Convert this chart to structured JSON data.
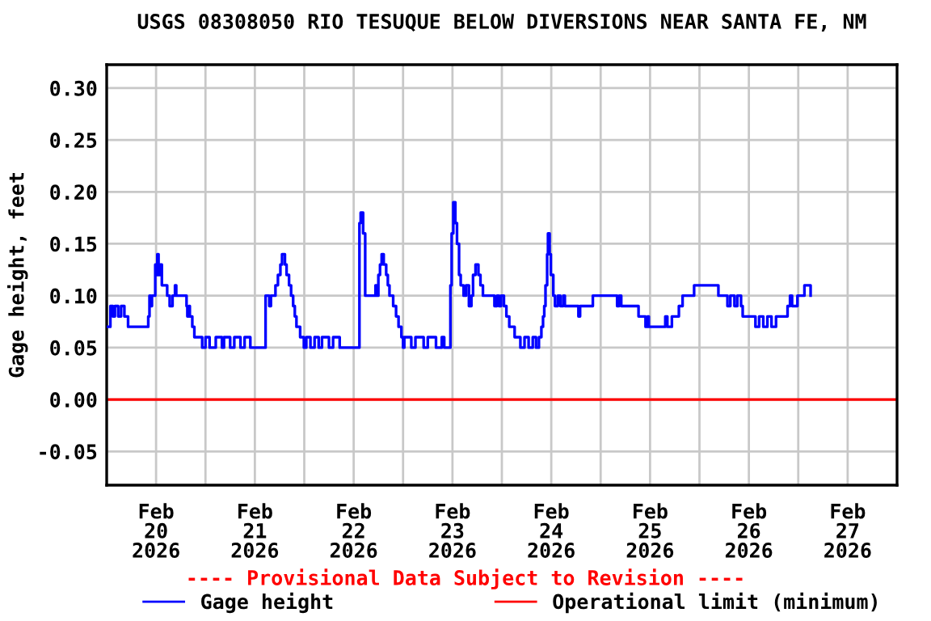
{
  "chart_data": {
    "type": "step",
    "title": "USGS 08308050 RIO TESUQUE BELOW DIVERSIONS NEAR SANTA FE, NM",
    "ylabel": "Gage height, feet",
    "annotations": [
      "---- Provisional Data Subject to Revision ----"
    ],
    "xlim": [
      "2026-02-20T00:00",
      "2026-02-28T00:00"
    ],
    "xticks": [
      {
        "value": "2026-02-20T00:00",
        "label": null
      },
      {
        "value": "2026-02-20T12:00",
        "label": "Feb\n20\n2026"
      },
      {
        "value": "2026-02-21T00:00",
        "label": null
      },
      {
        "value": "2026-02-21T12:00",
        "label": "Feb\n21\n2026"
      },
      {
        "value": "2026-02-22T00:00",
        "label": null
      },
      {
        "value": "2026-02-22T12:00",
        "label": "Feb\n22\n2026"
      },
      {
        "value": "2026-02-23T00:00",
        "label": null
      },
      {
        "value": "2026-02-23T12:00",
        "label": "Feb\n23\n2026"
      },
      {
        "value": "2026-02-24T00:00",
        "label": null
      },
      {
        "value": "2026-02-24T12:00",
        "label": "Feb\n24\n2026"
      },
      {
        "value": "2026-02-25T00:00",
        "label": null
      },
      {
        "value": "2026-02-25T12:00",
        "label": "Feb\n25\n2026"
      },
      {
        "value": "2026-02-26T00:00",
        "label": null
      },
      {
        "value": "2026-02-26T12:00",
        "label": "Feb\n26\n2026"
      },
      {
        "value": "2026-02-27T00:00",
        "label": null
      },
      {
        "value": "2026-02-27T12:00",
        "label": "Feb\n27\n2026"
      },
      {
        "value": "2026-02-28T00:00",
        "label": null
      }
    ],
    "ylim": [
      -0.0825,
      0.3225
    ],
    "yticks": [
      {
        "value": -0.05,
        "label": "-0.05"
      },
      {
        "value": 0,
        "label": "0.00"
      },
      {
        "value": 0.05,
        "label": "0.05"
      },
      {
        "value": 0.1,
        "label": "0.10"
      },
      {
        "value": 0.15,
        "label": "0.15"
      },
      {
        "value": 0.2,
        "label": "0.20"
      },
      {
        "value": 0.25,
        "label": "0.25"
      },
      {
        "value": 0.3,
        "label": "0.30"
      }
    ],
    "grid": true,
    "legend": "bottom",
    "marker": "none",
    "line_style": "solid",
    "series": [
      {
        "name": "Gage height",
        "color": "#0000ff",
        "x": [
          "2026-02-20T00:00",
          "2026-02-20T00:54",
          "2026-02-20T01:30",
          "2026-02-20T02:00",
          "2026-02-20T02:48",
          "2026-02-20T03:30",
          "2026-02-20T04:18",
          "2026-02-20T05:12",
          "2026-02-20T10:06",
          "2026-02-20T10:24",
          "2026-02-20T10:42",
          "2026-02-20T11:00",
          "2026-02-20T11:48",
          "2026-02-20T12:00",
          "2026-02-20T12:18",
          "2026-02-20T12:36",
          "2026-02-20T13:00",
          "2026-02-20T13:24",
          "2026-02-20T14:42",
          "2026-02-20T15:18",
          "2026-02-20T16:00",
          "2026-02-20T16:36",
          "2026-02-20T16:54",
          "2026-02-20T19:24",
          "2026-02-20T19:36",
          "2026-02-20T20:00",
          "2026-02-20T20:12",
          "2026-02-20T20:48",
          "2026-02-20T21:18",
          "2026-02-20T23:12",
          "2026-02-21T00:00",
          "2026-02-21T01:00",
          "2026-02-21T02:30",
          "2026-02-21T04:00",
          "2026-02-21T04:30",
          "2026-02-21T06:00",
          "2026-02-21T07:00",
          "2026-02-21T08:30",
          "2026-02-21T09:30",
          "2026-02-21T10:54",
          "2026-02-21T14:36",
          "2026-02-21T15:30",
          "2026-02-21T15:54",
          "2026-02-21T17:00",
          "2026-02-21T17:36",
          "2026-02-21T18:12",
          "2026-02-21T18:36",
          "2026-02-21T19:18",
          "2026-02-21T19:42",
          "2026-02-21T20:18",
          "2026-02-21T20:48",
          "2026-02-21T21:18",
          "2026-02-21T21:42",
          "2026-02-21T22:06",
          "2026-02-21T23:00",
          "2026-02-21T23:54",
          "2026-02-22T00:30",
          "2026-02-22T01:30",
          "2026-02-22T02:30",
          "2026-02-22T03:30",
          "2026-02-22T04:18",
          "2026-02-22T06:00",
          "2026-02-22T07:00",
          "2026-02-22T08:36",
          "2026-02-22T13:24",
          "2026-02-22T13:42",
          "2026-02-22T14:18",
          "2026-02-22T14:48",
          "2026-02-22T17:18",
          "2026-02-22T17:36",
          "2026-02-22T18:00",
          "2026-02-22T18:24",
          "2026-02-22T18:48",
          "2026-02-22T19:18",
          "2026-02-22T19:54",
          "2026-02-22T20:18",
          "2026-02-22T20:42",
          "2026-02-22T21:36",
          "2026-02-22T22:18",
          "2026-02-22T22:54",
          "2026-02-22T23:36",
          "2026-02-23T00:00",
          "2026-02-23T00:18",
          "2026-02-23T02:00",
          "2026-02-23T03:00",
          "2026-02-23T05:00",
          "2026-02-23T06:00",
          "2026-02-23T08:00",
          "2026-02-23T09:24",
          "2026-02-23T10:00",
          "2026-02-23T11:30",
          "2026-02-23T11:48",
          "2026-02-23T12:12",
          "2026-02-23T12:42",
          "2026-02-23T13:06",
          "2026-02-23T13:36",
          "2026-02-23T14:00",
          "2026-02-23T14:42",
          "2026-02-23T15:18",
          "2026-02-23T16:00",
          "2026-02-23T16:36",
          "2026-02-23T17:00",
          "2026-02-23T17:36",
          "2026-02-23T18:18",
          "2026-02-23T18:48",
          "2026-02-23T19:24",
          "2026-02-23T22:12",
          "2026-02-23T22:48",
          "2026-02-23T23:18",
          "2026-02-23T23:48",
          "2026-02-24T00:30",
          "2026-02-24T01:06",
          "2026-02-24T01:48",
          "2026-02-24T03:06",
          "2026-02-24T04:30",
          "2026-02-24T05:30",
          "2026-02-24T06:30",
          "2026-02-24T07:30",
          "2026-02-24T08:18",
          "2026-02-24T09:00",
          "2026-02-24T09:36",
          "2026-02-24T10:00",
          "2026-02-24T10:18",
          "2026-02-24T10:36",
          "2026-02-24T11:00",
          "2026-02-24T11:12",
          "2026-02-24T11:36",
          "2026-02-24T11:54",
          "2026-02-24T12:30",
          "2026-02-24T12:54",
          "2026-02-24T13:36",
          "2026-02-24T14:12",
          "2026-02-24T14:54",
          "2026-02-24T15:18",
          "2026-02-24T18:36",
          "2026-02-24T19:00",
          "2026-02-24T22:06",
          "2026-02-25T04:00",
          "2026-02-25T04:30",
          "2026-02-25T05:00",
          "2026-02-25T09:12",
          "2026-02-25T10:54",
          "2026-02-25T11:24",
          "2026-02-25T11:42",
          "2026-02-25T15:42",
          "2026-02-25T16:12",
          "2026-02-25T17:18",
          "2026-02-25T19:00",
          "2026-02-25T19:54",
          "2026-02-25T22:42",
          "2026-02-26T04:36",
          "2026-02-26T06:48",
          "2026-02-26T07:30",
          "2026-02-26T08:30",
          "2026-02-26T09:12",
          "2026-02-26T10:06",
          "2026-02-26T10:30",
          "2026-02-26T13:36",
          "2026-02-26T14:30",
          "2026-02-26T15:30",
          "2026-02-26T16:30",
          "2026-02-26T17:30",
          "2026-02-26T18:36",
          "2026-02-26T21:24",
          "2026-02-26T22:00",
          "2026-02-26T22:30",
          "2026-02-26T23:48",
          "2026-02-27T01:30",
          "2026-02-27T03:00"
        ],
        "values": [
          0.07,
          0.09,
          0.08,
          0.09,
          0.08,
          0.09,
          0.08,
          0.07,
          0.08,
          0.1,
          0.09,
          0.1,
          0.13,
          0.12,
          0.14,
          0.12,
          0.13,
          0.11,
          0.1,
          0.09,
          0.1,
          0.11,
          0.1,
          0.09,
          0.08,
          0.09,
          0.08,
          0.07,
          0.06,
          0.05,
          0.06,
          0.05,
          0.06,
          0.05,
          0.06,
          0.05,
          0.06,
          0.05,
          0.06,
          0.05,
          0.1,
          0.09,
          0.1,
          0.11,
          0.12,
          0.13,
          0.14,
          0.13,
          0.12,
          0.11,
          0.1,
          0.09,
          0.08,
          0.07,
          0.06,
          0.05,
          0.06,
          0.05,
          0.06,
          0.05,
          0.06,
          0.05,
          0.06,
          0.05,
          0.17,
          0.18,
          0.16,
          0.1,
          0.11,
          0.1,
          0.12,
          0.13,
          0.14,
          0.13,
          0.12,
          0.11,
          0.1,
          0.09,
          0.08,
          0.07,
          0.06,
          0.05,
          0.06,
          0.05,
          0.06,
          0.05,
          0.06,
          0.05,
          0.06,
          0.05,
          0.11,
          0.16,
          0.19,
          0.17,
          0.15,
          0.12,
          0.11,
          0.1,
          0.11,
          0.09,
          0.1,
          0.12,
          0.13,
          0.12,
          0.11,
          0.1,
          0.09,
          0.1,
          0.09,
          0.1,
          0.09,
          0.08,
          0.07,
          0.06,
          0.05,
          0.06,
          0.05,
          0.06,
          0.05,
          0.06,
          0.07,
          0.08,
          0.09,
          0.11,
          0.14,
          0.16,
          0.14,
          0.12,
          0.1,
          0.09,
          0.1,
          0.09,
          0.1,
          0.09,
          0.08,
          0.09,
          0.1,
          0.09,
          0.1,
          0.09,
          0.08,
          0.07,
          0.08,
          0.07,
          0.08,
          0.07,
          0.08,
          0.09,
          0.1,
          0.11,
          0.1,
          0.09,
          0.1,
          0.09,
          0.1,
          0.09,
          0.08,
          0.07,
          0.08,
          0.07,
          0.08,
          0.07,
          0.08,
          0.09,
          0.1,
          0.09,
          0.1,
          0.11,
          0.1
        ]
      },
      {
        "name": "Operational limit (minimum)",
        "color": "#ff0000",
        "type": "line",
        "x": [
          "2026-02-20T00:00",
          "2026-02-28T00:00"
        ],
        "values": [
          0,
          0
        ]
      }
    ]
  }
}
